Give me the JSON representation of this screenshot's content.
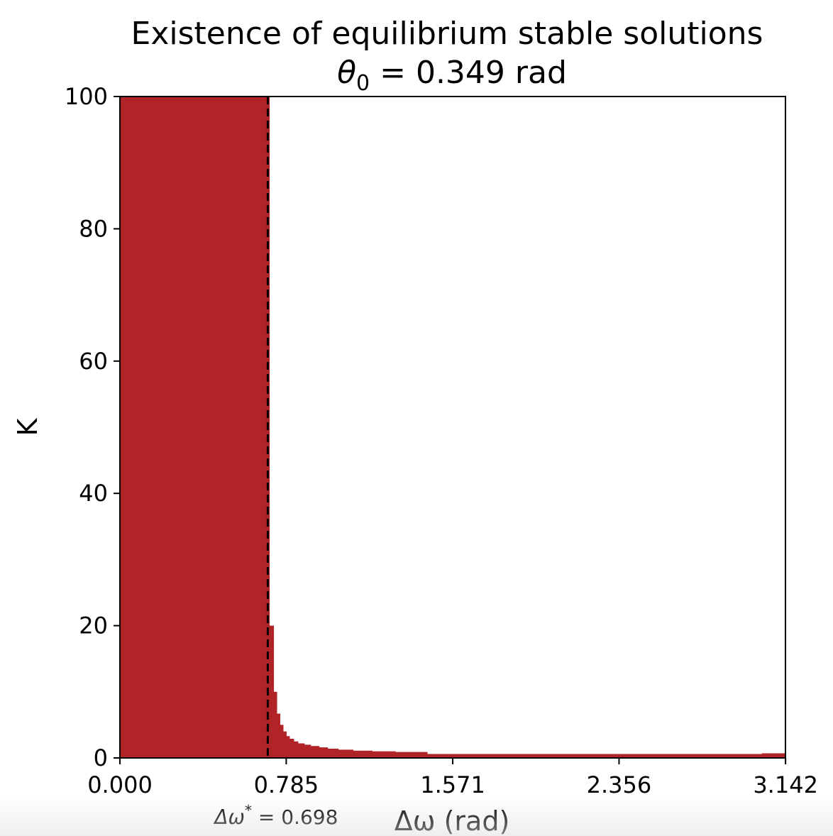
{
  "chart_data": {
    "type": "area",
    "title": "Existence of equilibrium stable solutions",
    "subtitle": {
      "symbol": "θ",
      "subscript": "0",
      "rest": " = 0.349 rad"
    },
    "xlabel": {
      "symbol": "Δω",
      "rest": " (rad)"
    },
    "ylabel": "K",
    "xlim": [
      0,
      3.1416
    ],
    "ylim": [
      0,
      100
    ],
    "xticks": [
      {
        "value": 0.0,
        "label": "0.000"
      },
      {
        "value": 0.785,
        "label": "0.785"
      },
      {
        "value": 1.571,
        "label": "1.571"
      },
      {
        "value": 2.356,
        "label": "2.356"
      },
      {
        "value": 3.142,
        "label": "3.142"
      }
    ],
    "yticks": [
      {
        "value": 0,
        "label": "0"
      },
      {
        "value": 20,
        "label": "20"
      },
      {
        "value": 40,
        "label": "40"
      },
      {
        "value": 60,
        "label": "60"
      },
      {
        "value": 80,
        "label": "80"
      },
      {
        "value": 100,
        "label": "100"
      }
    ],
    "fill_color": "#b02428",
    "series": [
      {
        "steps": [
          {
            "x0": 0.0,
            "x1": 0.705,
            "k": 100
          },
          {
            "x0": 0.705,
            "x1": 0.725,
            "k": 20
          },
          {
            "x0": 0.725,
            "x1": 0.74,
            "k": 10
          },
          {
            "x0": 0.74,
            "x1": 0.755,
            "k": 6.7
          },
          {
            "x0": 0.755,
            "x1": 0.77,
            "k": 5
          },
          {
            "x0": 0.77,
            "x1": 0.785,
            "k": 4
          },
          {
            "x0": 0.785,
            "x1": 0.8,
            "k": 3.3
          },
          {
            "x0": 0.8,
            "x1": 0.82,
            "k": 2.9
          },
          {
            "x0": 0.82,
            "x1": 0.84,
            "k": 2.5
          },
          {
            "x0": 0.84,
            "x1": 0.87,
            "k": 2.2
          },
          {
            "x0": 0.87,
            "x1": 0.9,
            "k": 2.0
          },
          {
            "x0": 0.9,
            "x1": 0.94,
            "k": 1.8
          },
          {
            "x0": 0.94,
            "x1": 0.98,
            "k": 1.6
          },
          {
            "x0": 0.98,
            "x1": 1.03,
            "k": 1.4
          },
          {
            "x0": 1.03,
            "x1": 1.1,
            "k": 1.25
          },
          {
            "x0": 1.1,
            "x1": 1.19,
            "k": 1.1
          },
          {
            "x0": 1.19,
            "x1": 1.3,
            "k": 1.0
          },
          {
            "x0": 1.3,
            "x1": 1.45,
            "k": 0.9
          },
          {
            "x0": 1.45,
            "x1": 3.03,
            "k": 0.6
          },
          {
            "x0": 3.03,
            "x1": 3.142,
            "k": 0.7
          }
        ]
      }
    ],
    "annotations": [
      {
        "type": "vline",
        "x": 0.698,
        "style": "dashed",
        "color": "#000000",
        "label": {
          "symbol": "Δω",
          "superscript": "*",
          "rest": " = 0.698"
        }
      }
    ],
    "grid": false,
    "legend": "none"
  }
}
